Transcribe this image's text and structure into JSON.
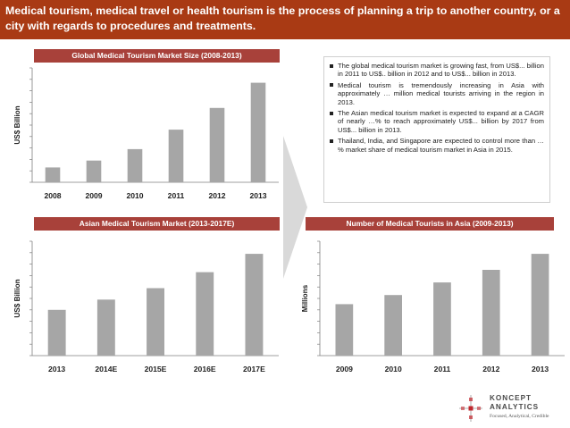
{
  "header": {
    "title": "Medical tourism, medical travel or health tourism is the process of planning a trip to another country, or a city with regards to procedures and treatments."
  },
  "bullets": [
    "The global medical tourism market is growing fast, from US$... billion in 2011 to US$.. billion in 2012 and to US$... billion in 2013.",
    "Medical tourism is tremendously increasing in Asia with approximately … million medical tourists arriving in the region in 2013.",
    "The Asian medical tourism market is expected to expand at a CAGR of nearly …% to reach approximately US$... billion by 2017 from US$... billion in 2013.",
    "Thailand, India, and Singapore are expected to control more than …% market share of medical tourism market in Asia in 2015."
  ],
  "logo": {
    "name_line1": "KONCEPT",
    "name_line2": "ANALYTICS",
    "tagline": "Focused, Analytical, Credible",
    "accent_color": "#c0272d"
  },
  "colors": {
    "header_bg": "#a93a14",
    "panel_title_bg": "#a8413a",
    "bar": "#a6a6a6",
    "arrow": "#d9d9d9"
  },
  "chart_data": [
    {
      "id": "global",
      "type": "bar",
      "title": "Global  Medical Tourism Market Size (2008-2013)",
      "ylabel": "US$ Billion",
      "xlabel": "",
      "categories": [
        "2008",
        "2009",
        "2010",
        "2011",
        "2012",
        "2013"
      ],
      "values": [
        1.3,
        1.9,
        2.9,
        4.6,
        6.5,
        8.7
      ],
      "ylim": [
        0,
        10
      ],
      "major_ticks": [
        0,
        2,
        4,
        6,
        8,
        10
      ],
      "minor_per_major": 1
    },
    {
      "id": "asian",
      "type": "bar",
      "title": "Asian  Medical Tourism  Market (2013-2017E)",
      "ylabel": "US$ Billion",
      "xlabel": "",
      "categories": [
        "2013",
        "2014E",
        "2015E",
        "2016E",
        "2017E"
      ],
      "values": [
        4.0,
        4.9,
        5.9,
        7.3,
        8.9
      ],
      "ylim": [
        0,
        10
      ],
      "major_ticks": [
        0,
        2,
        4,
        6,
        8,
        10
      ],
      "minor_per_major": 1
    },
    {
      "id": "tourists",
      "type": "bar",
      "title": "Number of Medical Tourists in Asia (2009-2013)",
      "ylabel": "Millions",
      "xlabel": "",
      "categories": [
        "2009",
        "2010",
        "2011",
        "2012",
        "2013"
      ],
      "values": [
        4.5,
        5.3,
        6.4,
        7.5,
        8.9
      ],
      "ylim": [
        0,
        10
      ],
      "major_ticks": [
        0,
        2,
        4,
        6,
        8,
        10
      ],
      "minor_per_major": 1
    }
  ]
}
